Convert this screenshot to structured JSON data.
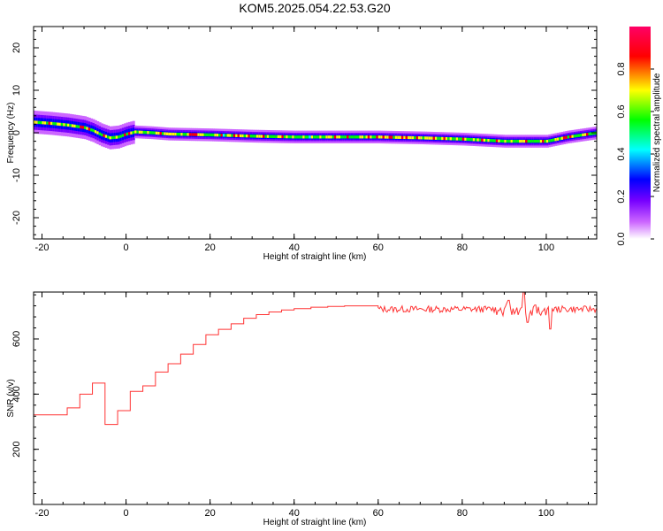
{
  "title": "KOM5.2025.054.22.53.G20",
  "chart_data": [
    {
      "type": "heatmap",
      "xlabel": "Height of straight line (km)",
      "ylabel": "Frequency (Hz)",
      "xlim": [
        -22,
        112
      ],
      "ylim": [
        -25,
        25
      ],
      "xticks": [
        -20,
        0,
        20,
        40,
        60,
        80,
        100
      ],
      "yticks": [
        20,
        10,
        0,
        -10,
        -20
      ],
      "colorbar": {
        "label": "Normalized spectral amplitude",
        "range": [
          0,
          1
        ],
        "ticks": [
          "0.0",
          "0.2",
          "0.4",
          "0.6",
          "0.8"
        ],
        "colors": [
          "#ffffff",
          "#cc66ff",
          "#7700ff",
          "#0000ff",
          "#00ffff",
          "#00ff00",
          "#ffff00",
          "#ff0000",
          "#ff0066"
        ]
      },
      "ridge": {
        "x": [
          -22,
          -18,
          -14,
          -10,
          -8,
          -6,
          -4,
          -2,
          0,
          2,
          6,
          10,
          20,
          30,
          40,
          50,
          60,
          70,
          80,
          90,
          100,
          105,
          112
        ],
        "y": [
          2.5,
          2.2,
          1.8,
          1.2,
          0.5,
          -0.5,
          -1.2,
          -1.0,
          -0.3,
          0.2,
          0.0,
          -0.3,
          -0.5,
          -0.8,
          -1.0,
          -1.0,
          -1.0,
          -1.2,
          -1.5,
          -2.0,
          -2.0,
          -1.0,
          0.0
        ]
      }
    },
    {
      "type": "line",
      "xlabel": "Height of straight line (km)",
      "ylabel": "SNR (v/v)",
      "xlim": [
        -22,
        112
      ],
      "ylim": [
        0,
        770
      ],
      "xticks": [
        -20,
        0,
        20,
        40,
        60,
        80,
        100
      ],
      "yticks": [
        600,
        400,
        200
      ],
      "color": "#ff3333",
      "steps": {
        "x": [
          -22,
          -14,
          -11,
          -8,
          -5,
          -2,
          1,
          4,
          7,
          10,
          13,
          16,
          19,
          22,
          25,
          28,
          31,
          34,
          37,
          40,
          44,
          48,
          52,
          56,
          60
        ],
        "y": [
          325,
          350,
          400,
          440,
          290,
          340,
          410,
          430,
          480,
          510,
          545,
          580,
          615,
          635,
          655,
          675,
          688,
          698,
          705,
          710,
          715,
          718,
          720,
          720,
          720
        ]
      },
      "noisy": {
        "x_start": 60,
        "x_end": 112,
        "mean": 708,
        "amplitude": 12,
        "spikes": [
          {
            "x": 94.5,
            "y": 770
          },
          {
            "x": 95.5,
            "y": 660
          },
          {
            "x": 101,
            "y": 636
          },
          {
            "x": 91,
            "y": 740
          }
        ]
      }
    }
  ]
}
